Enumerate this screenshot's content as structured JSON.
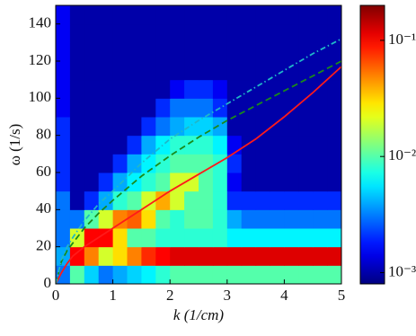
{
  "chart_data": {
    "type": "heatmap",
    "xlabel": "k (1/cm)",
    "ylabel": "ω (1/s)",
    "xlim": [
      0,
      5
    ],
    "ylim": [
      0,
      150
    ],
    "xticks": [
      0,
      1,
      2,
      3,
      4,
      5
    ],
    "yticks": [
      0,
      20,
      40,
      60,
      80,
      100,
      120,
      140
    ],
    "colormap": "jet",
    "color_scale": "log",
    "clim": [
      0.0008,
      0.2
    ],
    "cticks": [
      {
        "value": 0.001,
        "label": "10⁻³"
      },
      {
        "value": 0.01,
        "label": "10⁻²"
      },
      {
        "value": 0.1,
        "label": "10⁻¹"
      }
    ],
    "z": [
      [
        0.003,
        0.01,
        0.005,
        0.003,
        0.004,
        0.005,
        0.006,
        0.008,
        0.01,
        0.01,
        0.01,
        0.01,
        0.01,
        0.01,
        0.01,
        0.01,
        0.01,
        0.01,
        0.01,
        0.01
      ],
      [
        0.004,
        0.1,
        0.05,
        0.02,
        0.03,
        0.05,
        0.08,
        0.1,
        0.12,
        0.12,
        0.12,
        0.12,
        0.12,
        0.12,
        0.12,
        0.12,
        0.12,
        0.12,
        0.12,
        0.12
      ],
      [
        0.003,
        0.02,
        0.1,
        0.1,
        0.03,
        0.01,
        0.01,
        0.008,
        0.008,
        0.008,
        0.008,
        0.008,
        0.006,
        0.006,
        0.006,
        0.006,
        0.006,
        0.006,
        0.006,
        0.006
      ],
      [
        0.003,
        0.003,
        0.01,
        0.02,
        0.05,
        0.06,
        0.03,
        0.01,
        0.008,
        0.01,
        0.01,
        0.008,
        0.004,
        0.003,
        0.003,
        0.003,
        0.003,
        0.003,
        0.003,
        0.003
      ],
      [
        0.003,
        0.001,
        0.002,
        0.004,
        0.008,
        0.01,
        0.02,
        0.04,
        0.02,
        0.01,
        0.01,
        0.008,
        0.002,
        0.002,
        0.002,
        0.002,
        0.002,
        0.002,
        0.002,
        0.002
      ],
      [
        0.002,
        0.001,
        0.001,
        0.002,
        0.004,
        0.006,
        0.008,
        0.01,
        0.02,
        0.02,
        0.01,
        0.008,
        0.0015,
        0.001,
        0.001,
        0.001,
        0.001,
        0.001,
        0.001,
        0.001
      ],
      [
        0.002,
        0.001,
        0.001,
        0.001,
        0.002,
        0.004,
        0.006,
        0.008,
        0.01,
        0.01,
        0.01,
        0.008,
        0.002,
        0.001,
        0.001,
        0.001,
        0.001,
        0.001,
        0.001,
        0.001
      ],
      [
        0.002,
        0.001,
        0.001,
        0.001,
        0.001,
        0.002,
        0.004,
        0.006,
        0.008,
        0.008,
        0.008,
        0.006,
        0.0015,
        0.001,
        0.001,
        0.001,
        0.001,
        0.001,
        0.001,
        0.001
      ],
      [
        0.002,
        0.001,
        0.001,
        0.001,
        0.001,
        0.001,
        0.002,
        0.003,
        0.004,
        0.005,
        0.005,
        0.004,
        0.001,
        0.001,
        0.001,
        0.001,
        0.001,
        0.001,
        0.001,
        0.001
      ],
      [
        0.0015,
        0.001,
        0.001,
        0.001,
        0.001,
        0.001,
        0.001,
        0.002,
        0.003,
        0.003,
        0.003,
        0.002,
        0.001,
        0.001,
        0.001,
        0.001,
        0.001,
        0.001,
        0.001,
        0.001
      ],
      [
        0.0015,
        0.001,
        0.001,
        0.001,
        0.001,
        0.001,
        0.001,
        0.001,
        0.0015,
        0.002,
        0.002,
        0.0015,
        0.001,
        0.001,
        0.001,
        0.001,
        0.001,
        0.001,
        0.001,
        0.001
      ],
      [
        0.0015,
        0.001,
        0.001,
        0.001,
        0.001,
        0.001,
        0.001,
        0.001,
        0.001,
        0.001,
        0.001,
        0.001,
        0.001,
        0.001,
        0.001,
        0.001,
        0.001,
        0.001,
        0.001,
        0.001
      ],
      [
        0.0015,
        0.001,
        0.001,
        0.001,
        0.001,
        0.001,
        0.001,
        0.001,
        0.001,
        0.001,
        0.001,
        0.001,
        0.001,
        0.001,
        0.001,
        0.001,
        0.001,
        0.001,
        0.001,
        0.001
      ],
      [
        0.0015,
        0.001,
        0.001,
        0.001,
        0.001,
        0.001,
        0.001,
        0.001,
        0.001,
        0.001,
        0.001,
        0.001,
        0.001,
        0.001,
        0.001,
        0.001,
        0.001,
        0.001,
        0.001,
        0.001
      ],
      [
        0.0015,
        0.001,
        0.001,
        0.001,
        0.001,
        0.001,
        0.001,
        0.001,
        0.001,
        0.001,
        0.001,
        0.001,
        0.001,
        0.001,
        0.001,
        0.001,
        0.001,
        0.001,
        0.001,
        0.001
      ]
    ],
    "lines": [
      {
        "color": "#ff1a1a",
        "style": "solid",
        "x": [
          0,
          0.1,
          0.2,
          0.3,
          0.5,
          0.75,
          1,
          1.5,
          2,
          2.5,
          3,
          3.5,
          4,
          4.5,
          5
        ],
        "values": [
          0,
          6,
          11,
          15,
          20,
          25,
          30,
          40,
          50,
          59,
          68,
          78,
          90,
          103,
          117
        ]
      },
      {
        "color": "#1a8a1a",
        "style": "dashed",
        "x": [
          0,
          0.1,
          0.2,
          0.3,
          0.5,
          0.75,
          1,
          1.5,
          2,
          2.5,
          3,
          3.5,
          4,
          4.5,
          5
        ],
        "values": [
          0,
          12,
          18,
          22,
          30,
          38,
          45,
          58,
          69,
          79,
          88,
          96,
          104,
          112,
          120
        ]
      },
      {
        "color": "#20b8c8",
        "style": "dashdot",
        "x": [
          0,
          0.1,
          0.2,
          0.3,
          0.5,
          0.75,
          1,
          1.5,
          2,
          2.5,
          3,
          3.5,
          4,
          4.5,
          5
        ],
        "values": [
          0,
          13,
          20,
          25,
          34,
          43,
          50,
          65,
          78,
          88,
          97,
          106,
          115,
          124,
          132
        ]
      }
    ]
  }
}
